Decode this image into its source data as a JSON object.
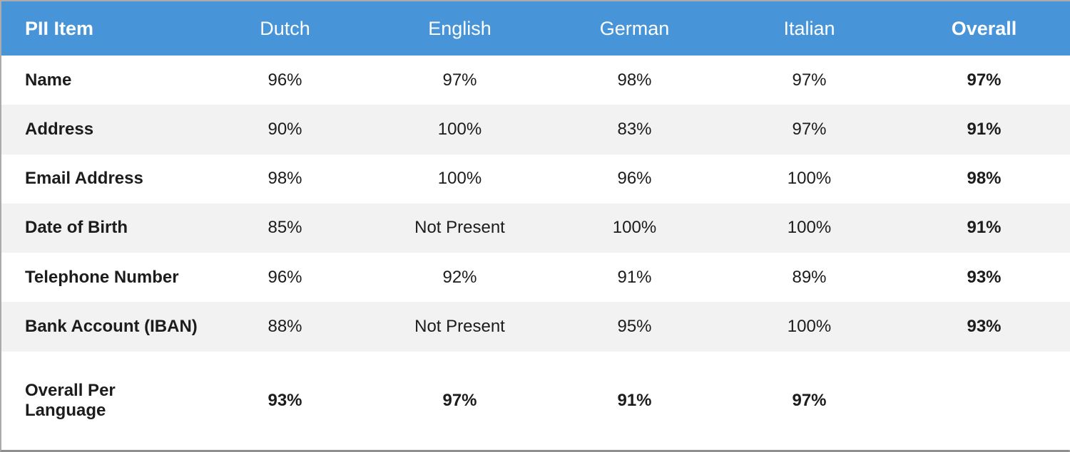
{
  "chart_data": {
    "type": "table",
    "columns": [
      "PII Item",
      "Dutch",
      "English",
      "German",
      "Italian",
      "Overall"
    ],
    "rows": [
      {
        "label": "Name",
        "values": [
          "96%",
          "97%",
          "98%",
          "97%",
          "97%"
        ]
      },
      {
        "label": "Address",
        "values": [
          "90%",
          "100%",
          "83%",
          "97%",
          "91%"
        ]
      },
      {
        "label": "Email Address",
        "values": [
          "98%",
          "100%",
          "96%",
          "100%",
          "98%"
        ]
      },
      {
        "label": "Date of Birth",
        "values": [
          "85%",
          "Not Present",
          "100%",
          "100%",
          "91%"
        ]
      },
      {
        "label": "Telephone Number",
        "values": [
          "96%",
          "92%",
          "91%",
          "89%",
          "93%"
        ]
      },
      {
        "label": "Bank Account (IBAN)",
        "values": [
          "88%",
          "Not Present",
          "95%",
          "100%",
          "93%"
        ]
      },
      {
        "label": "Overall Per Language",
        "values": [
          "93%",
          "97%",
          "91%",
          "97%",
          ""
        ]
      }
    ]
  },
  "colors": {
    "header_background": "#4795d8",
    "header_text": "#ffffff",
    "stripe_background": "#f2f2f2",
    "row_background": "#ffffff",
    "body_text": "#1c1c1c",
    "border_light": "#ababab",
    "border_dark": "#8f8f8f"
  }
}
